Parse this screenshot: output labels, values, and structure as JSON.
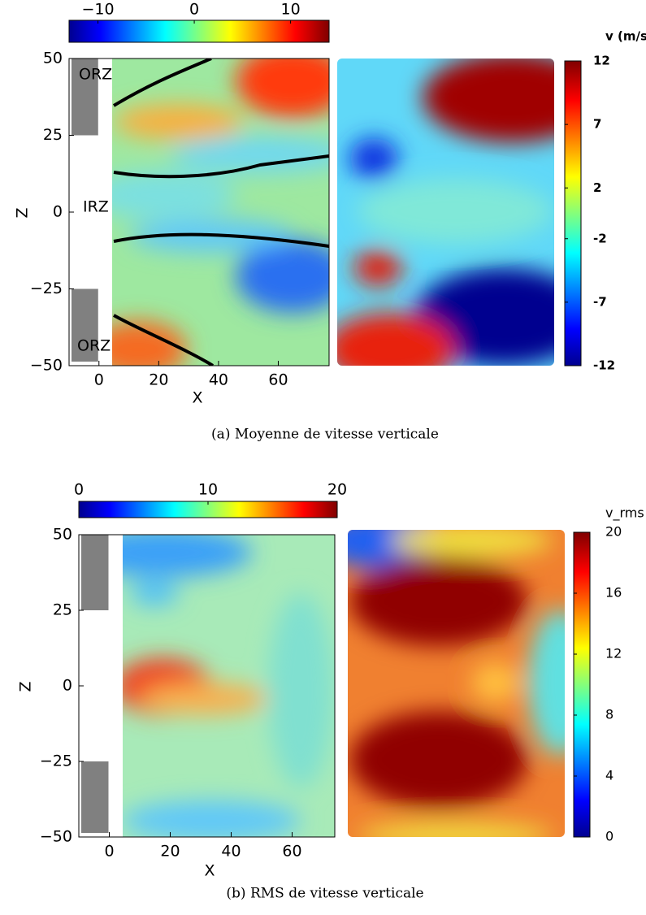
{
  "chart_data": [
    {
      "type": "heatmap",
      "caption": "(a) Moyenne de vitesse verticale",
      "xlabel": "X",
      "ylabel": "Z",
      "xlim": [
        -10,
        77
      ],
      "ylim": [
        -50,
        50
      ],
      "xticks": [
        0,
        20,
        40,
        60
      ],
      "yticks": [
        50,
        25,
        0,
        {
          "value": -25,
          "label": "−25"
        },
        {
          "value": -50,
          "label": "−50"
        }
      ],
      "annotations": [
        "ORZ",
        "IRZ",
        "ORZ"
      ],
      "colorbar_top": {
        "clim": [
          -13,
          14
        ],
        "ticks": [
          {
            "value": -10,
            "label": "−10"
          },
          0,
          10
        ]
      },
      "colorbar_right": {
        "label": "v (m/s)",
        "clim": [
          -12,
          12
        ],
        "ticks": [
          12,
          7,
          2,
          -2,
          -7,
          -12
        ]
      }
    },
    {
      "type": "heatmap",
      "caption": "(b) RMS de vitesse verticale",
      "xlabel": "X",
      "ylabel": "Z",
      "xlim": [
        -10,
        74
      ],
      "ylim": [
        -50,
        50
      ],
      "xticks": [
        0,
        20,
        40,
        60
      ],
      "yticks": [
        50,
        25,
        0,
        {
          "value": -25,
          "label": "−25"
        },
        {
          "value": -50,
          "label": "−50"
        }
      ],
      "colorbar_top": {
        "clim": [
          0,
          20
        ],
        "ticks": [
          0,
          10,
          20
        ]
      },
      "colorbar_right": {
        "label": "v_rms",
        "clim": [
          0,
          20
        ],
        "ticks": [
          20,
          16,
          12,
          8,
          4,
          0
        ]
      }
    }
  ]
}
